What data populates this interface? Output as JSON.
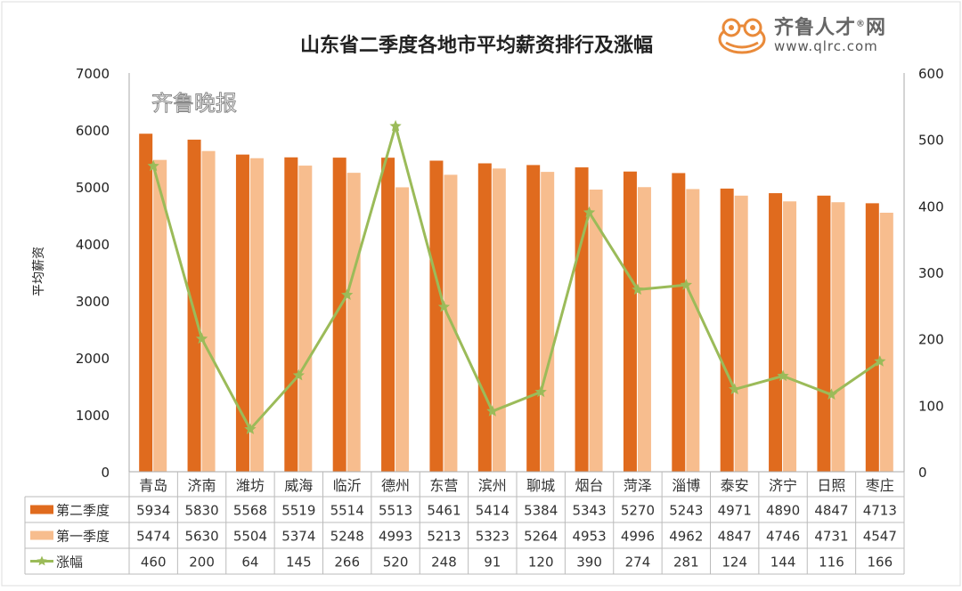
{
  "chart_data": {
    "type": "bar+line",
    "title": "山东省二季度各地市平均薪资排行及涨幅",
    "ylabel": "平均薪资",
    "ylim": [
      0,
      7000
    ],
    "y_ticks": [
      0,
      1000,
      2000,
      3000,
      4000,
      5000,
      6000,
      7000
    ],
    "y2lim": [
      0,
      600
    ],
    "y2_ticks": [
      0,
      100,
      200,
      300,
      400,
      500,
      600
    ],
    "grid": false,
    "legend": "table-below",
    "categories": [
      "青岛",
      "济南",
      "潍坊",
      "威海",
      "临沂",
      "德州",
      "东营",
      "滨州",
      "聊城",
      "烟台",
      "菏泽",
      "淄博",
      "泰安",
      "济宁",
      "日照",
      "枣庄"
    ],
    "series": [
      {
        "name": "第二季度",
        "type": "bar",
        "color": "#E06B1E",
        "values": [
          5934,
          5830,
          5568,
          5519,
          5514,
          5513,
          5461,
          5414,
          5384,
          5343,
          5270,
          5243,
          4971,
          4890,
          4847,
          4713
        ]
      },
      {
        "name": "第一季度",
        "type": "bar",
        "color": "#F7BD8E",
        "values": [
          5474,
          5630,
          5504,
          5374,
          5248,
          4993,
          5213,
          5323,
          5264,
          4953,
          4996,
          4962,
          4847,
          4746,
          4731,
          4547
        ]
      },
      {
        "name": "涨幅",
        "type": "line",
        "axis": "right",
        "color": "#9BBB59",
        "marker": "star",
        "values": [
          460,
          200,
          64,
          145,
          266,
          520,
          248,
          91,
          120,
          390,
          274,
          281,
          124,
          144,
          116,
          166
        ]
      }
    ]
  },
  "logo": {
    "name": "齐鲁人才",
    "suffix": "网",
    "url": "www.qlrc.com",
    "mark": "®"
  },
  "watermark": "齐鲁晚报"
}
